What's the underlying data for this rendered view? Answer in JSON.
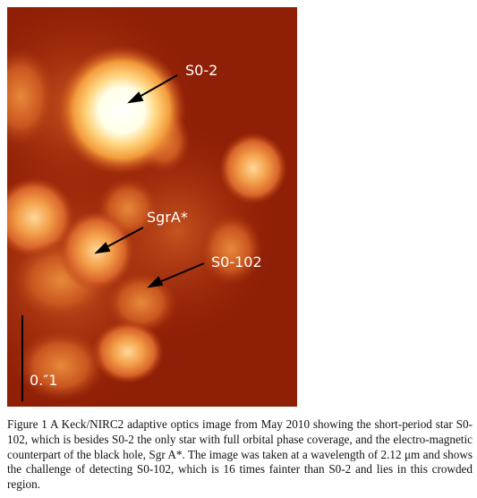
{
  "figure": {
    "labels": {
      "s02": "S0-2",
      "sgra": "SgrA*",
      "s0102": "S0-102",
      "scale": "0.″1"
    }
  },
  "caption": {
    "text": "Figure 1  A Keck/NIRC2 adaptive optics image from May 2010 showing the short-period star S0-102, which is besides S0-2 the only star with full orbital phase coverage, and the electro-magnetic counterpart of the black hole, Sgr A*. The image was taken at a wavelength of 2.12 μm and shows the challenge of detecting S0-102, which is 16 times fainter than S0-2 and lies in this crowded region."
  },
  "colors": {
    "background": "#8f1f06",
    "glow_mid": "#e0731e",
    "glow_bright": "#ffffff",
    "annotation": "#000000"
  }
}
